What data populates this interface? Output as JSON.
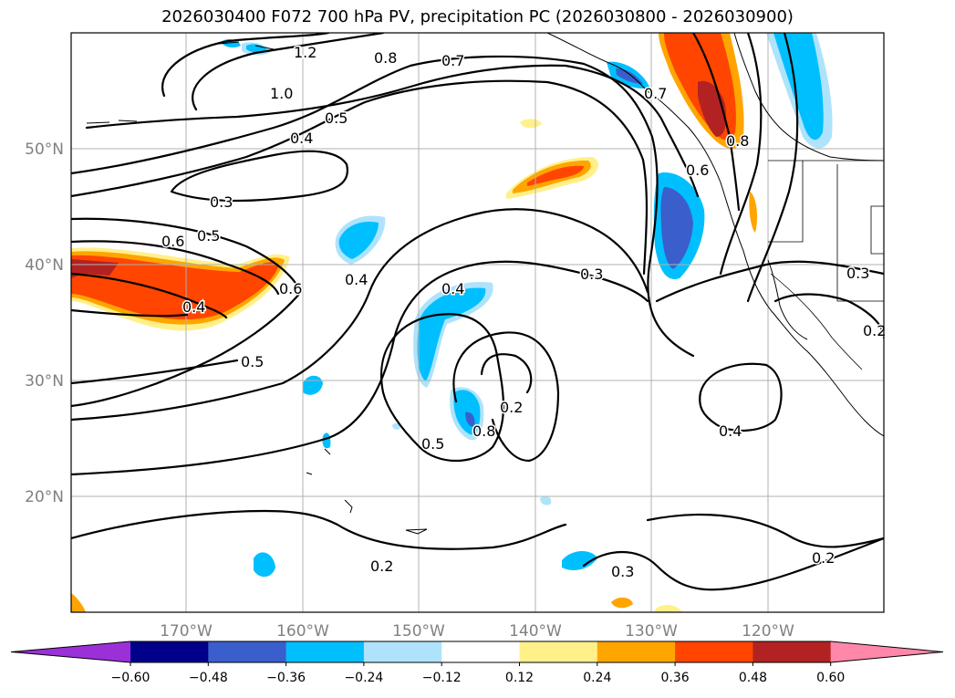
{
  "title": "2026030400 F072 700 hPa PV, precipitation PC (2026030800 - 2026030900)",
  "lat_labels": [
    "50°N",
    "40°N",
    "30°N",
    "20°N"
  ],
  "lon_labels": [
    "170°W",
    "160°W",
    "150°W",
    "140°W",
    "130°W",
    "120°W"
  ],
  "contour_labels": [
    "1.2",
    "0.8",
    "0.7",
    "1.0",
    "0.5",
    "0.4",
    "0.3",
    "0.6",
    "0.5",
    "0.6",
    "0.4",
    "0.4",
    "0.5",
    "0.4",
    "0.3",
    "0.2",
    "0.5",
    "0.8",
    "0.4",
    "0.3",
    "0.2",
    "0.2",
    "0.3",
    "0.2",
    "0.6",
    "0.8",
    "0.7"
  ],
  "colorbar": {
    "tick_labels": [
      "−0.60",
      "−0.48",
      "−0.36",
      "−0.24",
      "−0.12",
      "0.12",
      "0.24",
      "0.36",
      "0.48",
      "0.60"
    ],
    "colors": [
      "#9b30d9",
      "#00008b",
      "#3a5fcd",
      "#00bfff",
      "#aee3fb",
      "#ffffff",
      "#fff08a",
      "#ffa500",
      "#ff4500",
      "#b22222",
      "#ff88aa"
    ]
  }
}
